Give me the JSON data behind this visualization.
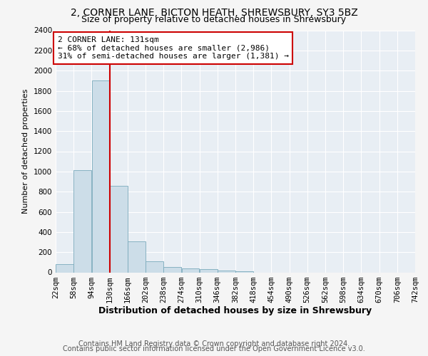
{
  "title_line1": "2, CORNER LANE, BICTON HEATH, SHREWSBURY, SY3 5BZ",
  "title_line2": "Size of property relative to detached houses in Shrewsbury",
  "xlabel": "Distribution of detached houses by size in Shrewsbury",
  "ylabel": "Number of detached properties",
  "bar_color": "#ccdde8",
  "bar_edge_color": "#7aaabb",
  "annotation_line_color": "#cc0000",
  "annotation_box_color": "#ffffff",
  "annotation_box_edge": "#cc0000",
  "annotation_text_line1": "2 CORNER LANE: 131sqm",
  "annotation_text_line2": "← 68% of detached houses are smaller (2,986)",
  "annotation_text_line3": "31% of semi-detached houses are larger (1,381) →",
  "property_sqm": 131,
  "bin_edges": [
    22,
    58,
    94,
    130,
    166,
    202,
    238,
    274,
    310,
    346,
    382,
    418,
    454,
    490,
    526,
    562,
    598,
    634,
    670,
    706,
    742
  ],
  "bin_labels": [
    "22sqm",
    "58sqm",
    "94sqm",
    "130sqm",
    "166sqm",
    "202sqm",
    "238sqm",
    "274sqm",
    "310sqm",
    "346sqm",
    "382sqm",
    "418sqm",
    "454sqm",
    "490sqm",
    "526sqm",
    "562sqm",
    "598sqm",
    "634sqm",
    "670sqm",
    "706sqm",
    "742sqm"
  ],
  "bar_heights": [
    80,
    1010,
    1900,
    860,
    310,
    110,
    55,
    40,
    30,
    18,
    8,
    0,
    0,
    0,
    0,
    0,
    0,
    0,
    0,
    0
  ],
  "ylim": [
    0,
    2400
  ],
  "yticks": [
    0,
    200,
    400,
    600,
    800,
    1000,
    1200,
    1400,
    1600,
    1800,
    2000,
    2200,
    2400
  ],
  "footer_line1": "Contains HM Land Registry data © Crown copyright and database right 2024.",
  "footer_line2": "Contains public sector information licensed under the Open Government Licence v3.0.",
  "fig_background_color": "#f5f5f5",
  "plot_background_color": "#e8eef4",
  "grid_color": "#ffffff",
  "title_fontsize": 10,
  "subtitle_fontsize": 9,
  "ylabel_fontsize": 8,
  "xlabel_fontsize": 9,
  "tick_fontsize": 7.5,
  "footer_fontsize": 7,
  "annot_fontsize": 8
}
